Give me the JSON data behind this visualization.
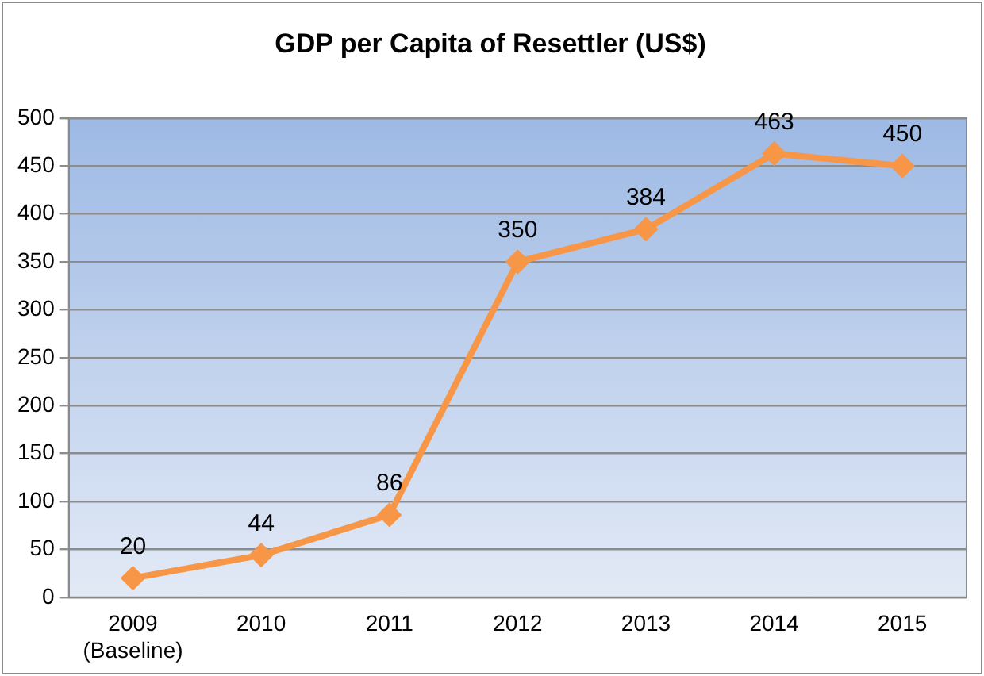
{
  "chart_data": {
    "type": "line",
    "title": "GDP per Capita of Resettler (US$)",
    "categories": [
      "2009\n(Baseline)",
      "2010",
      "2011",
      "2012",
      "2013",
      "2014",
      "2015"
    ],
    "series": [
      {
        "color": "#f79646",
        "values": [
          20,
          44,
          86,
          350,
          384,
          463,
          450
        ]
      }
    ],
    "ylim": [
      0,
      500
    ],
    "yticks": [
      0,
      50,
      100,
      150,
      200,
      250,
      300,
      350,
      400,
      450,
      500
    ],
    "grid": "y",
    "legend": false,
    "marker": "diamond",
    "line_style": "solid",
    "data_labels": true
  }
}
